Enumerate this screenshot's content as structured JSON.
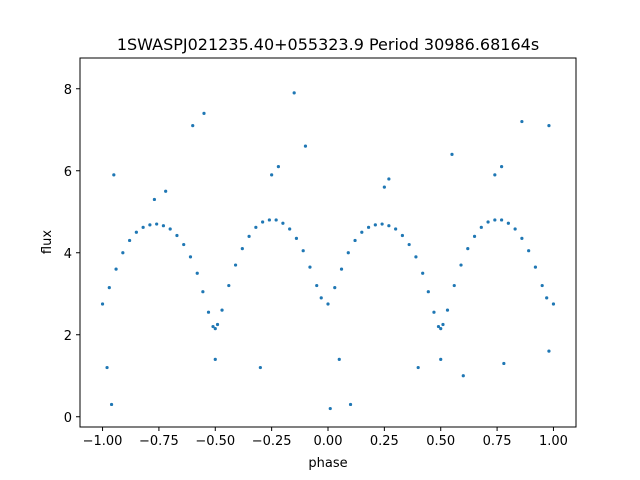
{
  "chart_data": {
    "type": "scatter",
    "title": "1SWASPJ021235.40+055323.9 Period 30986.68164s",
    "xlabel": "phase",
    "ylabel": "flux",
    "xlim": [
      -1.1,
      1.1
    ],
    "ylim": [
      -0.25,
      8.75
    ],
    "xticks": [
      -1.0,
      -0.75,
      -0.5,
      -0.25,
      0.0,
      0.25,
      0.5,
      0.75,
      1.0
    ],
    "xtick_labels": [
      "−1.00",
      "−0.75",
      "−0.50",
      "−0.25",
      "0.00",
      "0.25",
      "0.50",
      "0.75",
      "1.00"
    ],
    "yticks": [
      0,
      2,
      4,
      6,
      8
    ],
    "ytick_labels": [
      "0",
      "2",
      "4",
      "6",
      "8"
    ],
    "grid": false,
    "marker_color": "#1f77b4",
    "series": [
      {
        "points": [
          [
            -1.0,
            2.75
          ],
          [
            -0.97,
            3.15
          ],
          [
            -0.94,
            3.6
          ],
          [
            -0.91,
            4.0
          ],
          [
            -0.88,
            4.3
          ],
          [
            -0.85,
            4.5
          ],
          [
            -0.82,
            4.62
          ],
          [
            -0.79,
            4.68
          ],
          [
            -0.76,
            4.7
          ],
          [
            -0.73,
            4.66
          ],
          [
            -0.7,
            4.58
          ],
          [
            -0.67,
            4.42
          ],
          [
            -0.64,
            4.2
          ],
          [
            -0.61,
            3.9
          ],
          [
            -0.58,
            3.5
          ],
          [
            -0.555,
            3.05
          ],
          [
            -0.53,
            2.55
          ],
          [
            -0.51,
            2.2
          ],
          [
            -0.5,
            2.15
          ],
          [
            -0.49,
            2.25
          ],
          [
            -0.47,
            2.6
          ],
          [
            -0.44,
            3.2
          ],
          [
            -0.41,
            3.7
          ],
          [
            -0.38,
            4.1
          ],
          [
            -0.35,
            4.4
          ],
          [
            -0.32,
            4.62
          ],
          [
            -0.29,
            4.75
          ],
          [
            -0.26,
            4.8
          ],
          [
            -0.23,
            4.8
          ],
          [
            -0.2,
            4.72
          ],
          [
            -0.17,
            4.58
          ],
          [
            -0.14,
            4.35
          ],
          [
            -0.11,
            4.05
          ],
          [
            -0.08,
            3.65
          ],
          [
            -0.05,
            3.2
          ],
          [
            -0.03,
            2.9
          ],
          [
            0.0,
            2.75
          ],
          [
            0.03,
            3.15
          ],
          [
            0.06,
            3.6
          ],
          [
            0.09,
            4.0
          ],
          [
            0.12,
            4.3
          ],
          [
            0.15,
            4.5
          ],
          [
            0.18,
            4.62
          ],
          [
            0.21,
            4.68
          ],
          [
            0.24,
            4.7
          ],
          [
            0.27,
            4.66
          ],
          [
            0.3,
            4.58
          ],
          [
            0.33,
            4.42
          ],
          [
            0.36,
            4.2
          ],
          [
            0.39,
            3.9
          ],
          [
            0.42,
            3.5
          ],
          [
            0.445,
            3.05
          ],
          [
            0.47,
            2.55
          ],
          [
            0.49,
            2.2
          ],
          [
            0.5,
            2.15
          ],
          [
            0.51,
            2.25
          ],
          [
            0.53,
            2.6
          ],
          [
            0.56,
            3.2
          ],
          [
            0.59,
            3.7
          ],
          [
            0.62,
            4.1
          ],
          [
            0.65,
            4.4
          ],
          [
            0.68,
            4.62
          ],
          [
            0.71,
            4.75
          ],
          [
            0.74,
            4.8
          ],
          [
            0.77,
            4.8
          ],
          [
            0.8,
            4.72
          ],
          [
            0.83,
            4.58
          ],
          [
            0.86,
            4.35
          ],
          [
            0.89,
            4.05
          ],
          [
            0.92,
            3.65
          ],
          [
            0.95,
            3.2
          ],
          [
            0.97,
            2.9
          ],
          [
            1.0,
            2.75
          ],
          [
            -0.77,
            5.3
          ],
          [
            -0.72,
            5.5
          ],
          [
            -0.25,
            5.9
          ],
          [
            -0.22,
            6.1
          ],
          [
            0.25,
            5.6
          ],
          [
            0.27,
            5.8
          ],
          [
            0.74,
            5.9
          ],
          [
            0.77,
            6.1
          ],
          [
            -0.6,
            7.1
          ],
          [
            0.86,
            7.2
          ],
          [
            -0.55,
            7.4
          ],
          [
            -0.15,
            7.9
          ],
          [
            0.05,
            1.4
          ],
          [
            0.1,
            0.3
          ],
          [
            -0.96,
            0.3
          ],
          [
            0.5,
            1.4
          ],
          [
            -0.5,
            1.4
          ],
          [
            0.98,
            1.6
          ],
          [
            -0.98,
            1.2
          ],
          [
            0.78,
            1.3
          ],
          [
            -0.3,
            1.2
          ],
          [
            0.4,
            1.2
          ],
          [
            -0.1,
            6.6
          ],
          [
            0.55,
            6.4
          ],
          [
            0.98,
            7.1
          ],
          [
            -0.95,
            5.9
          ],
          [
            0.01,
            0.2
          ],
          [
            0.6,
            1.0
          ]
        ]
      }
    ]
  }
}
